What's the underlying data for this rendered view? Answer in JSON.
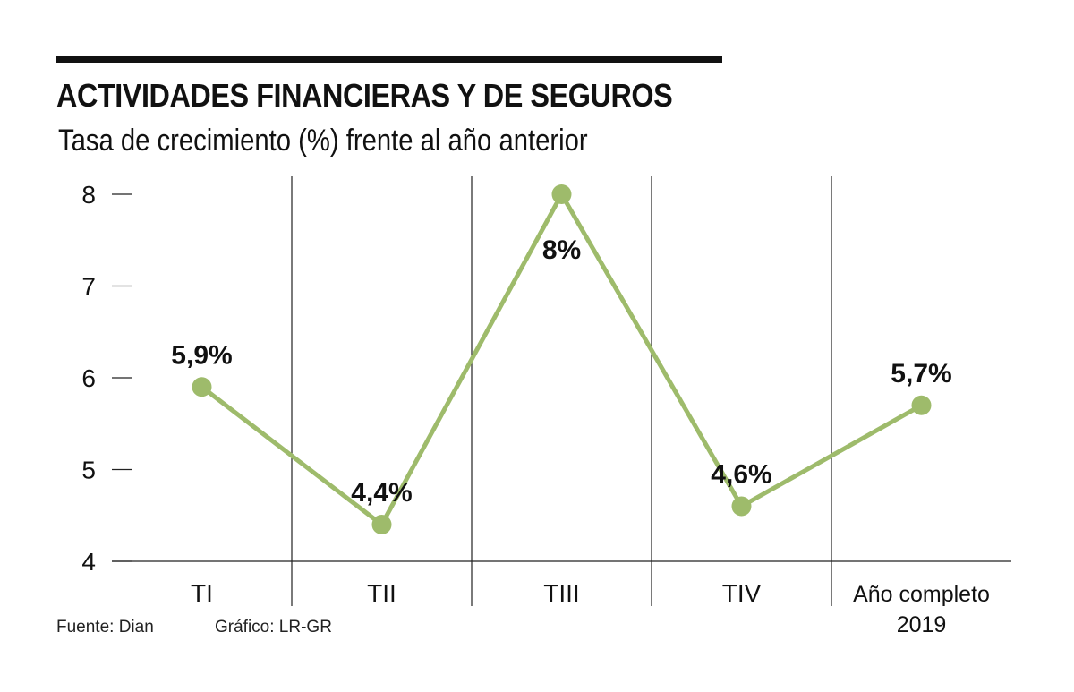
{
  "chart_data": {
    "type": "line",
    "title": "ACTIVIDADES FINANCIERAS Y DE SEGUROS",
    "subtitle": "Tasa de crecimiento (%) frente al año anterior",
    "categories": [
      "TI",
      "TII",
      "TIII",
      "TIV",
      "Año completo 2019"
    ],
    "category_lines": [
      [
        "TI"
      ],
      [
        "TII"
      ],
      [
        "TIII"
      ],
      [
        "TIV"
      ],
      [
        "Año completo",
        "2019"
      ]
    ],
    "series": [
      {
        "name": "Tasa de crecimiento",
        "values": [
          5.9,
          4.4,
          8.0,
          4.6,
          5.7
        ],
        "labels": [
          "5,9%",
          "4,4%",
          "8%",
          "4,6%",
          "5,7%"
        ]
      }
    ],
    "ylim": [
      4,
      8
    ],
    "yticks": [
      4,
      5,
      6,
      7,
      8
    ],
    "xlabel": "",
    "ylabel": "",
    "line_color": "#9ebb6b"
  },
  "footer": {
    "source": "Fuente: Dian",
    "graphic": "Gráfico: LR-GR"
  }
}
